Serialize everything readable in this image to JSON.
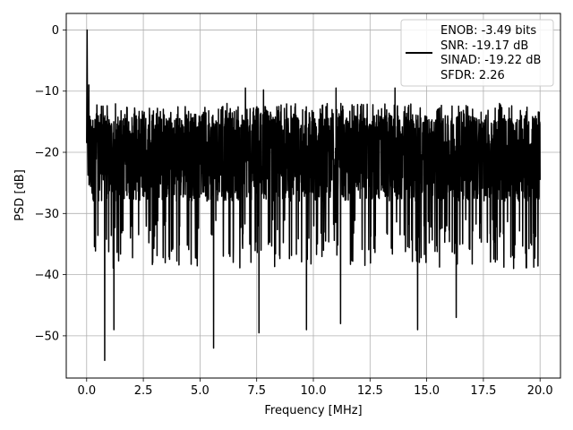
{
  "chart_data": {
    "type": "line",
    "title": "",
    "xlabel": "Frequency [MHz]",
    "ylabel": "PSD [dB]",
    "xlim": [
      -0.9,
      20.9
    ],
    "ylim": [
      -56.9,
      2.7
    ],
    "x_ticks": [
      0.0,
      2.5,
      5.0,
      7.5,
      10.0,
      12.5,
      15.0,
      17.5,
      20.0
    ],
    "x_tick_labels": [
      "0.0",
      "2.5",
      "5.0",
      "7.5",
      "10.0",
      "12.5",
      "15.0",
      "17.5",
      "20.0"
    ],
    "y_ticks": [
      0,
      -10,
      -20,
      -30,
      -40,
      -50
    ],
    "y_tick_labels": [
      "0",
      "−10",
      "−20",
      "−30",
      "−40",
      "−50"
    ],
    "grid": true,
    "legend_position": "top-right",
    "series": [
      {
        "name": "ENOB: -3.49 bits\nSNR: -19.17 dB\nSINAD: -19.22 dB\nSFDR: 2.26",
        "color": "#000000",
        "peak": {
          "x": 0.02,
          "y": 0.0
        },
        "noise_floor_mean": -21,
        "noise_upper_envelope": -12,
        "deep_nulls": [
          {
            "x": 0.8,
            "y": -54
          },
          {
            "x": 1.2,
            "y": -49
          },
          {
            "x": 5.6,
            "y": -52
          },
          {
            "x": 7.6,
            "y": -49.5
          },
          {
            "x": 9.7,
            "y": -49
          },
          {
            "x": 11.2,
            "y": -48
          },
          {
            "x": 14.6,
            "y": -49
          },
          {
            "x": 16.3,
            "y": -47
          }
        ],
        "upper_peaks": [
          {
            "x": 0.1,
            "y": -9
          },
          {
            "x": 7.0,
            "y": -9.5
          },
          {
            "x": 7.8,
            "y": -9.8
          },
          {
            "x": 11.0,
            "y": -9.5
          },
          {
            "x": 13.6,
            "y": -9.5
          }
        ]
      }
    ]
  },
  "legend": {
    "lines": [
      "ENOB: -3.49 bits",
      "SNR: -19.17 dB",
      "SINAD: -19.22 dB",
      "SFDR: 2.26"
    ]
  }
}
